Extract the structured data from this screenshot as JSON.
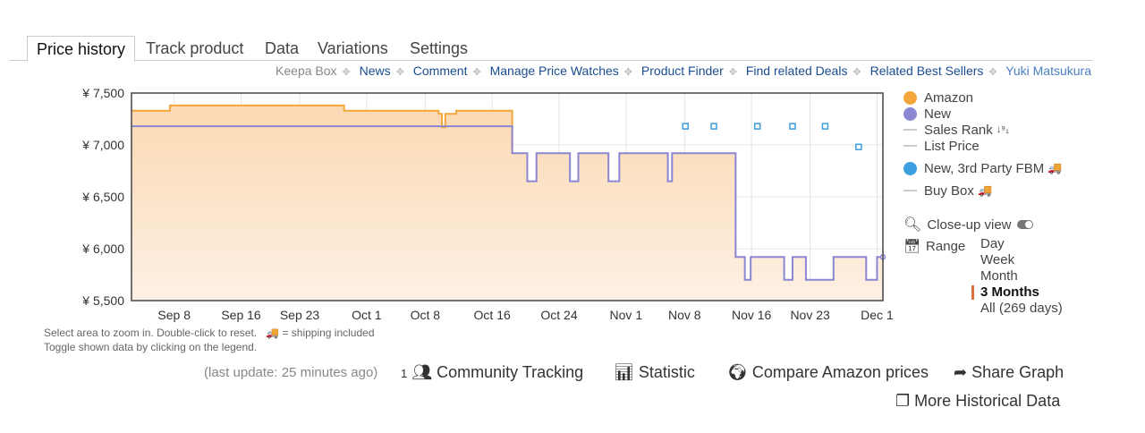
{
  "tabs": [
    "Price history",
    "Track product",
    "Data",
    "Variations",
    "Settings"
  ],
  "links": {
    "keepa_box": "Keepa Box",
    "items": [
      "News",
      "Comment",
      "Manage Price Watches",
      "Product Finder",
      "Find related Deals",
      "Related Best Sellers"
    ],
    "user": "Yuki Matsukura"
  },
  "legend": {
    "amazon": "Amazon",
    "new": "New",
    "sales_rank": "Sales Rank",
    "sales_rank_icon": "↓⁹₁",
    "list_price": "List Price",
    "fbm": "New, 3rd Party FBM",
    "buy_box": "Buy Box",
    "truck_icon": "🚚",
    "close_up": "Close-up view",
    "range_label": "Range",
    "ranges": [
      "Day",
      "Week",
      "Month",
      "3 Months",
      "All (269 days)"
    ],
    "selected_range": "3 Months"
  },
  "colors": {
    "amazon": "#f3a73b",
    "new": "#8b86d2",
    "fbm": "#3d9ee0",
    "fill": "#fde3c8"
  },
  "hint": {
    "line1": "Select area to zoom in. Double-click to reset.",
    "shipping": "= shipping included",
    "line2": "Toggle shown data by clicking on the legend."
  },
  "footer": {
    "last_update": "(last update: 25 minutes ago)",
    "community_count": "1",
    "community": "Community Tracking",
    "statistic": "Statistic",
    "compare": "Compare Amazon prices",
    "share": "Share Graph",
    "more": "More Historical Data"
  },
  "chart_data": {
    "type": "line",
    "ylim": [
      5500,
      7500
    ],
    "yticks": [
      7500,
      7000,
      6500,
      6000,
      5500
    ],
    "ytick_labels": [
      "¥ 7,500",
      "¥ 7,000",
      "¥ 6,500",
      "¥ 6,000",
      "¥ 5,500"
    ],
    "x_unit": "days since Sep 1",
    "xlim": [
      1.9,
      91.7
    ],
    "xticks": [
      7,
      15,
      22,
      30,
      37,
      45,
      53,
      61,
      68,
      76,
      83,
      91
    ],
    "xtick_labels": [
      "Sep 8",
      "Sep 16",
      "Sep 23",
      "Oct 1",
      "Oct 8",
      "Oct 16",
      "Oct 24",
      "Nov 1",
      "Nov 8",
      "Nov 16",
      "Nov 23",
      "Dec 1"
    ],
    "series": [
      {
        "name": "Amazon",
        "step": [
          [
            1.9,
            7330
          ],
          [
            6.5,
            7380
          ],
          [
            27.3,
            7330
          ],
          [
            38.6,
            7300
          ],
          [
            39.0,
            7170
          ],
          [
            39.4,
            7300
          ],
          [
            40.7,
            7330
          ],
          [
            47.4,
            7330
          ]
        ]
      },
      {
        "name": "New",
        "step": [
          [
            1.9,
            7180
          ],
          [
            47.4,
            6920
          ],
          [
            49.2,
            6650
          ],
          [
            50.3,
            6920
          ],
          [
            54.3,
            6650
          ],
          [
            55.3,
            6920
          ],
          [
            58.9,
            6650
          ],
          [
            60.2,
            6920
          ],
          [
            66.0,
            6650
          ],
          [
            66.5,
            6920
          ],
          [
            74.1,
            5920
          ],
          [
            75.2,
            5700
          ],
          [
            75.9,
            5920
          ],
          [
            79.9,
            5700
          ],
          [
            80.9,
            5920
          ],
          [
            82.5,
            5700
          ],
          [
            85.8,
            5920
          ],
          [
            89.7,
            5700
          ],
          [
            91.0,
            5920
          ],
          [
            91.7,
            5920
          ]
        ]
      },
      {
        "name": "New, 3rd Party FBM",
        "points": [
          [
            68.1,
            7180
          ],
          [
            71.5,
            7180
          ],
          [
            76.7,
            7180
          ],
          [
            80.9,
            7180
          ],
          [
            84.8,
            7180
          ],
          [
            88.8,
            6980
          ]
        ]
      }
    ]
  }
}
